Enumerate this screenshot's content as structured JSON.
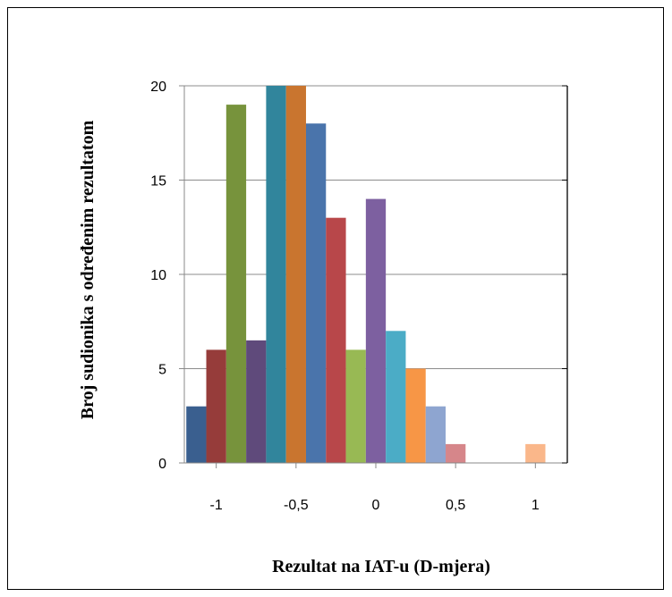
{
  "chart_data": {
    "type": "bar",
    "title": "",
    "xlabel": "Rezultat na IAT-u (D-mjera)",
    "ylabel": "Broj sudionika s određenim rezultatom",
    "x_tick_labels": [
      "-1",
      "-0,5",
      "0",
      "0,5",
      "1"
    ],
    "x_tick_values": [
      -1,
      -0.5,
      0,
      0.5,
      1
    ],
    "y_tick_labels": [
      "0",
      "5",
      "10",
      "15",
      "20"
    ],
    "y_tick_values": [
      0,
      5,
      10,
      15,
      20
    ],
    "ylim": [
      0,
      20
    ],
    "xlim": [
      -1.2,
      1.2
    ],
    "grid": true,
    "bar_width": 0.125,
    "bars": [
      {
        "x": -1.125,
        "value": 3,
        "color": "#3a5f8f"
      },
      {
        "x": -1.0,
        "value": 6,
        "color": "#963c3a"
      },
      {
        "x": -0.875,
        "value": 19,
        "color": "#77933c"
      },
      {
        "x": -0.75,
        "value": 6.5,
        "color": "#5f4a7b"
      },
      {
        "x": -0.625,
        "value": 20,
        "color": "#31859c"
      },
      {
        "x": -0.5,
        "value": 20,
        "color": "#c9752f"
      },
      {
        "x": -0.375,
        "value": 18,
        "color": "#4a74ab"
      },
      {
        "x": -0.25,
        "value": 13,
        "color": "#b8474a"
      },
      {
        "x": -0.125,
        "value": 6,
        "color": "#98b954"
      },
      {
        "x": 0.0,
        "value": 14,
        "color": "#7d60a0"
      },
      {
        "x": 0.125,
        "value": 7,
        "color": "#4bacc6"
      },
      {
        "x": 0.25,
        "value": 5,
        "color": "#f79646"
      },
      {
        "x": 0.375,
        "value": 3,
        "color": "#8ea5d0"
      },
      {
        "x": 0.5,
        "value": 1,
        "color": "#d6868a"
      },
      {
        "x": 1.0,
        "value": 1,
        "color": "#fab78a"
      }
    ]
  }
}
